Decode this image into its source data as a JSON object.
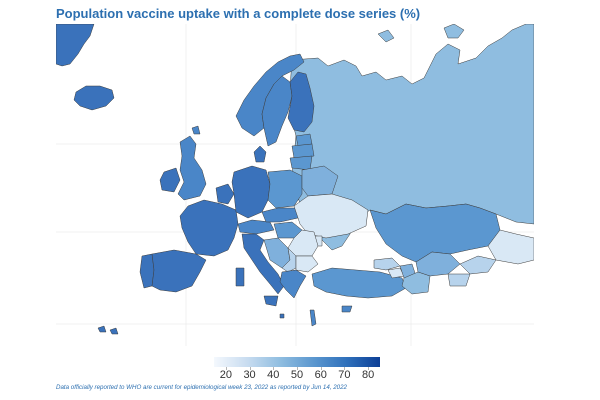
{
  "title": "Population vaccine uptake with a complete dose series (%)",
  "legend": {
    "ticks": [
      "20",
      "30",
      "40",
      "50",
      "60",
      "70",
      "80"
    ],
    "min": 15,
    "max": 85,
    "colors": [
      "#f4f8fd",
      "#c8dcf0",
      "#8fbde0",
      "#5b97cf",
      "#2f70bb",
      "#0c3f96"
    ]
  },
  "source_note": "Data officially reported to WHO are current for epidemiological week 23, 2022 as reported by Jun 14, 2022",
  "colors": {
    "land_very_high": "#3a72bb",
    "land_high": "#4a86c8",
    "land_mid_high": "#5b97d0",
    "land_mid": "#7fb0dc",
    "land_russia": "#8fbde0",
    "land_low": "#b7d3ec",
    "land_very_low": "#d9e8f5",
    "border": "#3d3d3d",
    "grid": "#e6e6e6"
  }
}
